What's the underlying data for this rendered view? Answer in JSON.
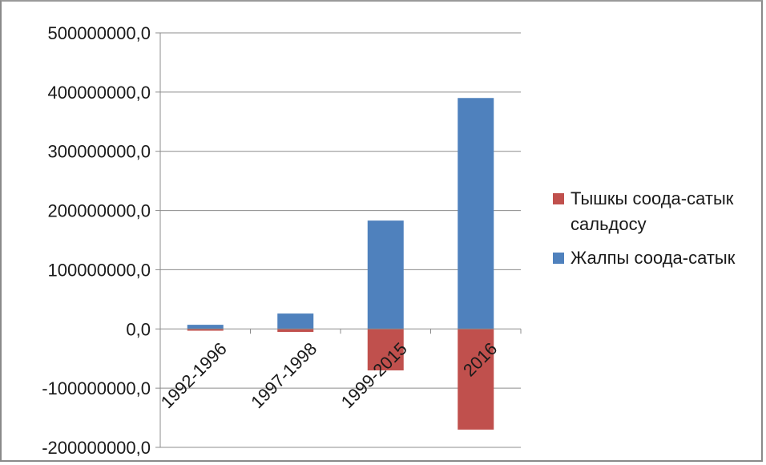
{
  "chart_data": {
    "type": "bar",
    "stacked": true,
    "categories": [
      "1992-1996",
      "1997-1998",
      "1999-2015",
      "2016"
    ],
    "series": [
      {
        "name": "Тышкы соода-сатык сальдосу",
        "color": "#C0504D",
        "values": [
          -3000000,
          -5000000,
          -70000000,
          -170000000
        ]
      },
      {
        "name": "Жалпы соода-сатык",
        "color": "#4F81BD",
        "values": [
          7000000,
          26000000,
          183000000,
          390000000
        ]
      }
    ],
    "ylim": [
      -200000000,
      500000000
    ],
    "yticks": [
      500000000,
      400000000,
      300000000,
      200000000,
      100000000,
      0,
      -100000000,
      -200000000
    ],
    "ytick_labels": [
      "500000000,0",
      "400000000,0",
      "300000000,0",
      "200000000,0",
      "100000000,0",
      "0,0",
      "-100000000,0",
      "-200000000,0"
    ],
    "grid": true,
    "legend_position": "right"
  }
}
